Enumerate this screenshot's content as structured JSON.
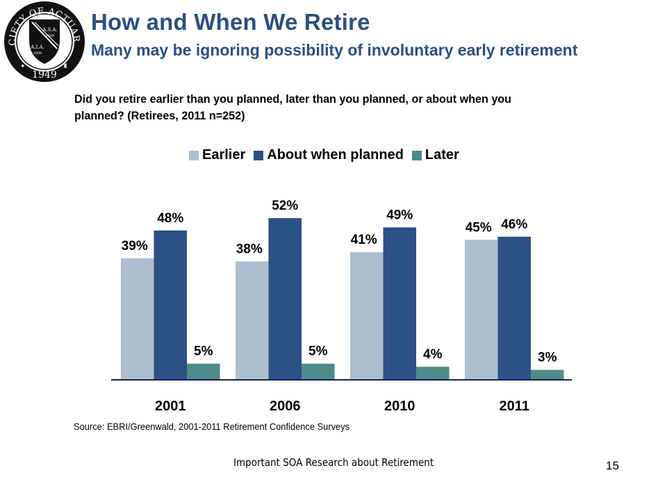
{
  "slide": {
    "title": "How and When We Retire",
    "subtitle": "Many may be ignoring possibility of involuntary early retirement",
    "question": "Did you retire earlier than you planned, later than you planned, or about when you planned?  (Retirees, 2011 n=252)",
    "source": "Source:  EBRI/Greenwald, 2001-2011 Retirement Confidence Surveys",
    "footer": "Important SOA Research about Retirement",
    "page_number": "15"
  },
  "logo": {
    "ring_text": "SOCIETY OF ACTUARIES",
    "year": "1949",
    "shield_top": "A.S.A.",
    "shield_top_year": "1889",
    "shield_bottom": "A.I.A.",
    "shield_bottom_year": "1909"
  },
  "colors": {
    "title": "#2a4f83",
    "earlier": "#adbfcf",
    "about": "#2b5185",
    "later": "#4e8b89",
    "axis": "#1a1f5c"
  },
  "chart_data": {
    "type": "bar",
    "title": "",
    "xlabel": "",
    "ylabel": "",
    "categories": [
      "2001",
      "2006",
      "2010",
      "2011"
    ],
    "series": [
      {
        "name": "Earlier",
        "key": "earlier",
        "values": [
          39,
          38,
          41,
          45
        ],
        "labels": [
          "39%",
          "38%",
          "41%",
          "45%"
        ]
      },
      {
        "name": "About when planned",
        "key": "about",
        "values": [
          48,
          52,
          49,
          46
        ],
        "labels": [
          "48%",
          "52%",
          "49%",
          "46%"
        ]
      },
      {
        "name": "Later",
        "key": "later",
        "values": [
          5,
          5,
          4,
          3
        ],
        "labels": [
          "5%",
          "5%",
          "4%",
          "3%"
        ]
      }
    ],
    "ylim": [
      0,
      60
    ],
    "grid": false,
    "legend_position": "top-center",
    "data_labels": true
  }
}
